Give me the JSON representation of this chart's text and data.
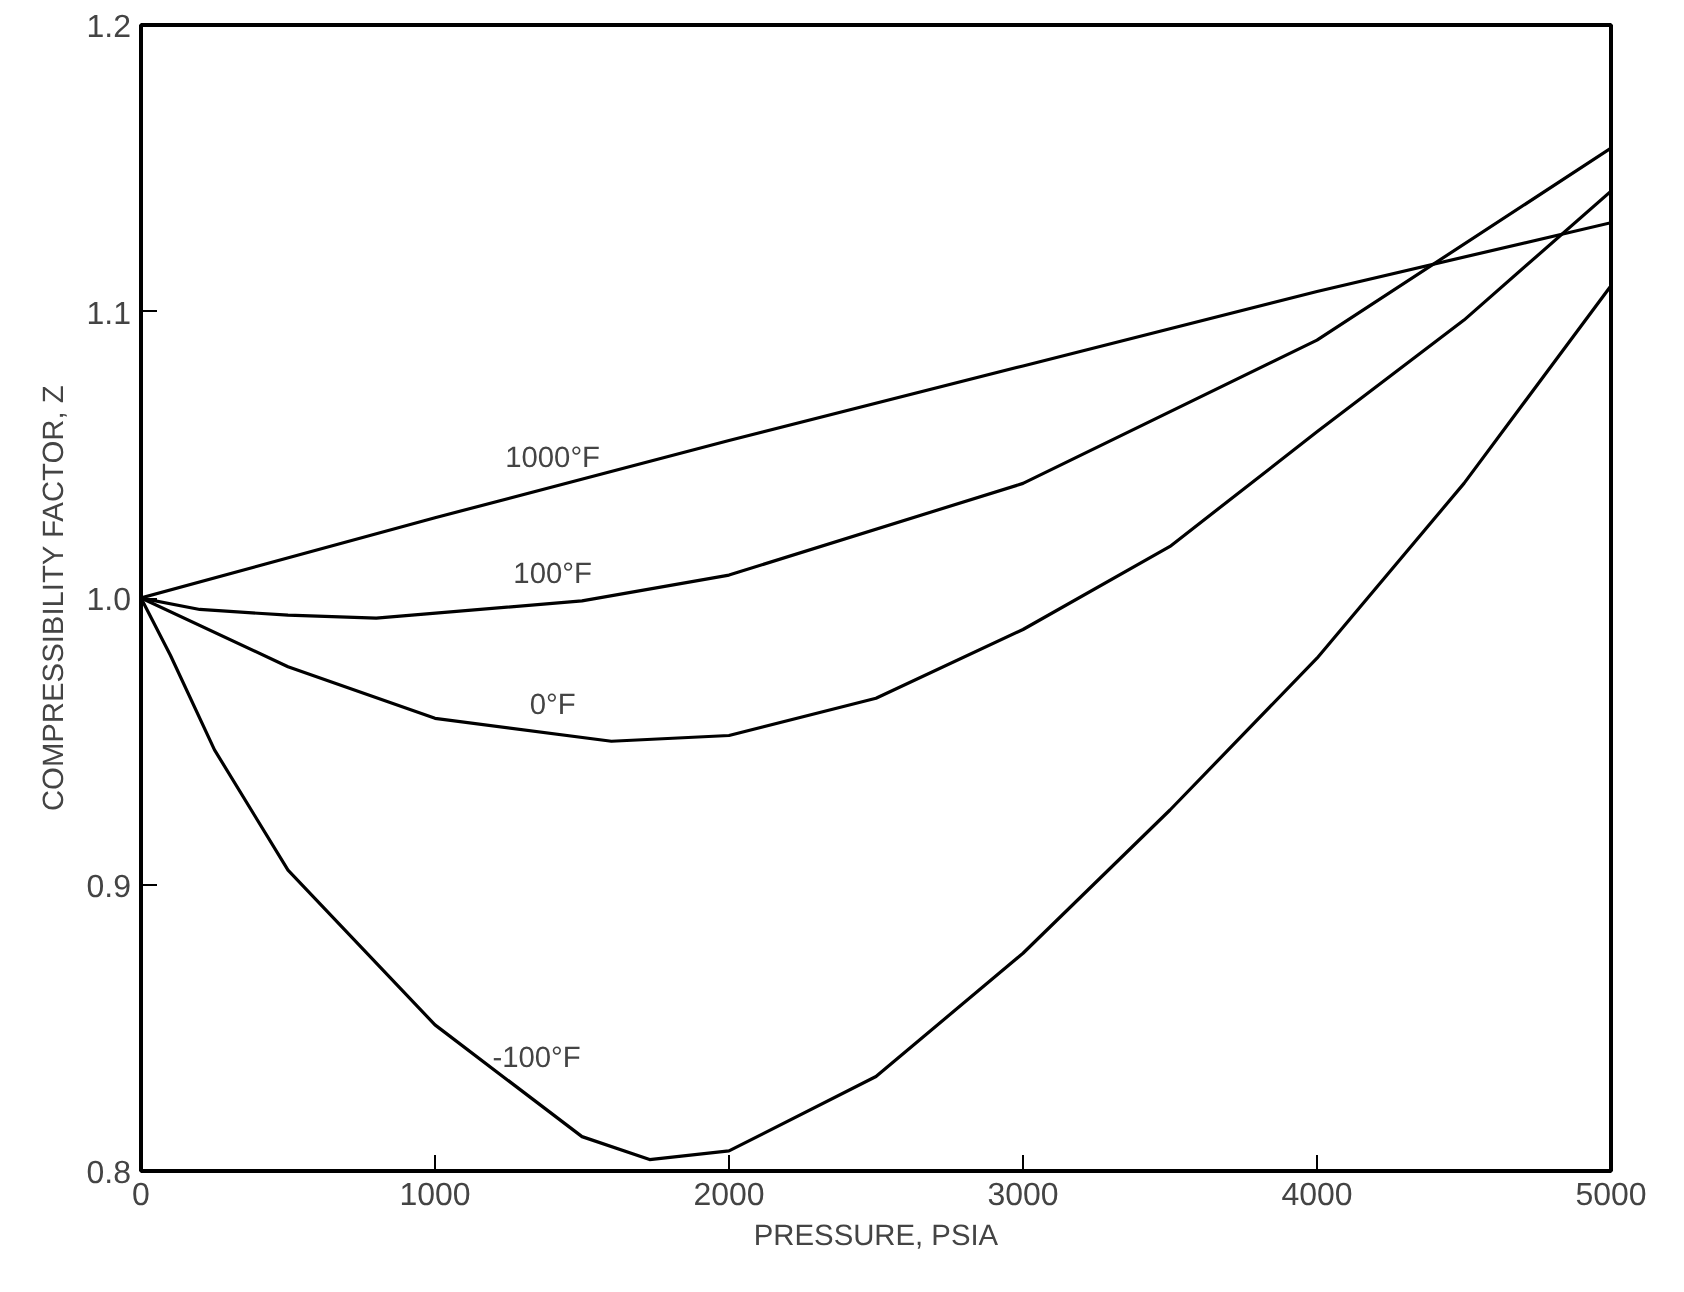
{
  "chart_data": {
    "type": "line",
    "xlabel": "PRESSURE, PSIA",
    "ylabel": "COMPRESSIBILITY FACTOR, Z",
    "xlim": [
      0,
      5000
    ],
    "ylim": [
      0.8,
      1.2
    ],
    "xticks": [
      0,
      1000,
      2000,
      3000,
      4000,
      5000
    ],
    "yticks": [
      {
        "value": 0.8,
        "label": "0.8"
      },
      {
        "value": 0.9,
        "label": "0.9"
      },
      {
        "value": 1.0,
        "label": "1.0"
      },
      {
        "value": 1.1,
        "label": "1.1"
      },
      {
        "value": 1.2,
        "label": "1.2"
      }
    ],
    "grid": false,
    "legend": false,
    "marker": "none",
    "line_style": "solid",
    "series": [
      {
        "name": "1000°F",
        "color": "#000000",
        "x": [
          0,
          1000,
          2000,
          3000,
          4000,
          5000
        ],
        "values": [
          1.0,
          1.028,
          1.055,
          1.081,
          1.107,
          1.131
        ]
      },
      {
        "name": "100°F",
        "color": "#000000",
        "x": [
          0,
          200,
          500,
          800,
          1500,
          2000,
          3000,
          4000,
          5000
        ],
        "values": [
          1.0,
          0.996,
          0.994,
          0.993,
          0.999,
          1.008,
          1.04,
          1.09,
          1.157
        ]
      },
      {
        "name": "0°F",
        "color": "#000000",
        "x": [
          0,
          500,
          1000,
          1600,
          2000,
          2500,
          3000,
          3500,
          4000,
          4500,
          5000
        ],
        "values": [
          1.0,
          0.976,
          0.958,
          0.95,
          0.952,
          0.965,
          0.989,
          1.018,
          1.058,
          1.097,
          1.142
        ]
      },
      {
        "name": "-100°F",
        "color": "#000000",
        "x": [
          0,
          100,
          250,
          500,
          1000,
          1500,
          1730,
          2000,
          2500,
          3000,
          3500,
          4000,
          4500,
          5000
        ],
        "values": [
          1.0,
          0.98,
          0.947,
          0.905,
          0.851,
          0.812,
          0.804,
          0.807,
          0.833,
          0.876,
          0.926,
          0.979,
          1.04,
          1.109
        ]
      }
    ]
  }
}
